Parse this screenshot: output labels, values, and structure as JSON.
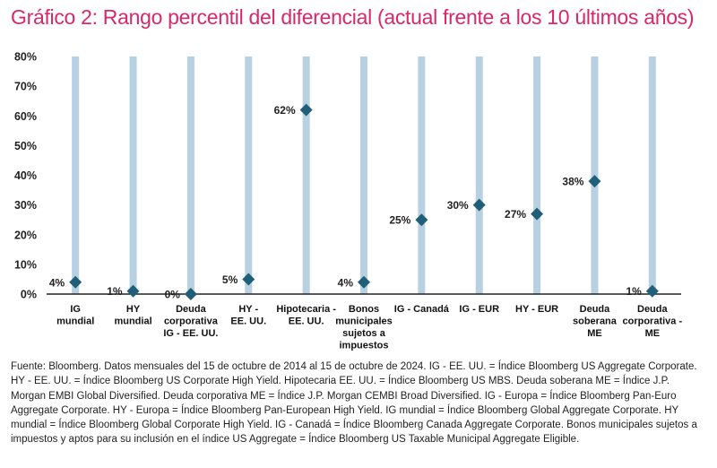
{
  "title": "Gráfico 2: Rango percentil del diferencial (actual frente a los 10 últimos años)",
  "footnote": "Fuente: Bloomberg. Datos mensuales del 15 de octubre de 2014 al 15 de octubre de 2024. IG - EE. UU. = Índice Bloomberg US Aggregate Corporate. HY - EE. UU. = Índice Bloomberg US Corporate High Yield. Hipotecaria EE. UU. = Índice Bloomberg US MBS. Deuda soberana ME = Índice J.P. Morgan EMBI Global Diversified. Deuda corporativa ME = Índice J.P. Morgan CEMBI Broad Diversified. IG - Europa = Índice Bloomberg Pan-Euro Aggregate Corporate. HY - Europa = Índice Bloomberg Pan-European High Yield. IG mundial = Índice Bloomberg Global Aggregate Corporate. HY mundial = Índice Bloomberg Global Corporate High Yield. IG - Canadá = Índice Bloomberg Canada Aggregate Corporate. Bonos municipales sujetos a impuestos y aptos para su inclusión en el índice US Aggregate = Índice Bloomberg US Taxable Municipal Aggregate Eligible.",
  "colors": {
    "title": "#d9286a",
    "range_bar": "#b7d0e2",
    "marker": "#1f5f7a",
    "axis": "#222222"
  },
  "chart_data": {
    "type": "scatter",
    "ylim": [
      0,
      80
    ],
    "yticks": [
      "0%",
      "10%",
      "20%",
      "30%",
      "40%",
      "50%",
      "60%",
      "70%",
      "80%"
    ],
    "grid": false,
    "range_bars": "0% a 80% por categoría",
    "categories": [
      [
        "IG",
        "mundial"
      ],
      [
        "HY",
        "mundial"
      ],
      [
        "Deuda",
        "corporativa",
        "IG - EE. UU."
      ],
      [
        "HY -",
        "EE. UU."
      ],
      [
        "Hipotecaria -",
        "EE. UU."
      ],
      [
        "Bonos",
        "municipales",
        "sujetos a",
        "impuestos"
      ],
      [
        "IG - Canadá"
      ],
      [
        "IG - EUR"
      ],
      [
        "HY - EUR"
      ],
      [
        "Deuda",
        "soberana",
        "ME"
      ],
      [
        "Deuda",
        "corporativa -",
        "ME"
      ]
    ],
    "values": [
      4,
      1,
      0,
      5,
      62,
      4,
      25,
      30,
      27,
      38,
      1
    ],
    "labels": [
      "4%",
      "1%",
      "0%",
      "5%",
      "62%",
      "4%",
      "25%",
      "30%",
      "27%",
      "38%",
      "1%"
    ]
  }
}
